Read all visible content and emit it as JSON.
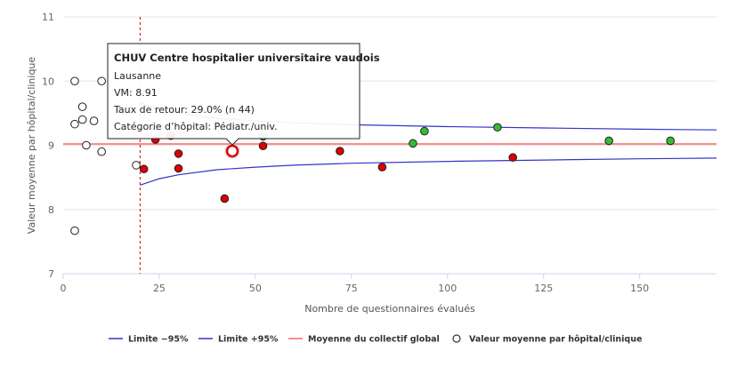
{
  "chart_data": {
    "type": "scatter",
    "xlabel": "Nombre de questionnaires évalués",
    "ylabel": "Valeur moyenne par hôpital/clinique",
    "xlim": [
      0,
      170
    ],
    "ylim": [
      7,
      11
    ],
    "x_ticks": [
      0,
      25,
      50,
      75,
      100,
      125,
      150
    ],
    "y_ticks": [
      7,
      8,
      9,
      10,
      11
    ],
    "grid": "horizontal",
    "legend_position": "bottom",
    "reference_line_x": 20,
    "mean_value": 9.02,
    "legend": [
      {
        "name": "Limite −95%",
        "color": "#3333cc",
        "kind": "line"
      },
      {
        "name": "Limite +95%",
        "color": "#3333cc",
        "kind": "line"
      },
      {
        "name": "Moyenne du collectif global",
        "color": "#ff6666",
        "kind": "line"
      },
      {
        "name": "Valeur moyenne par hôpital/clinique",
        "color": "#333333",
        "kind": "marker"
      }
    ],
    "series": [
      {
        "name": "Limite −95%",
        "color": "#3333cc",
        "x": [
          20,
          25,
          30,
          40,
          50,
          60,
          75,
          100,
          125,
          150,
          170
        ],
        "y": [
          8.38,
          8.48,
          8.54,
          8.62,
          8.66,
          8.69,
          8.72,
          8.75,
          8.77,
          8.79,
          8.8
        ]
      },
      {
        "name": "Limite +95%",
        "color": "#3333cc",
        "x": [
          20,
          25,
          30,
          40,
          50,
          60,
          75,
          100,
          125,
          150,
          170
        ],
        "y": [
          9.66,
          9.56,
          9.5,
          9.42,
          9.38,
          9.35,
          9.32,
          9.29,
          9.27,
          9.25,
          9.24
        ]
      },
      {
        "name": "Valeur moyenne par hôpital/clinique",
        "points": [
          {
            "x": 3,
            "y": 10.0,
            "fill": "#ffffff"
          },
          {
            "x": 10,
            "y": 10.0,
            "fill": "#ffffff"
          },
          {
            "x": 5,
            "y": 9.6,
            "fill": "#ffffff"
          },
          {
            "x": 5,
            "y": 9.4,
            "fill": "#ffffff"
          },
          {
            "x": 8,
            "y": 9.38,
            "fill": "#ffffff"
          },
          {
            "x": 3,
            "y": 9.33,
            "fill": "#ffffff"
          },
          {
            "x": 6,
            "y": 9.0,
            "fill": "#ffffff"
          },
          {
            "x": 10,
            "y": 8.9,
            "fill": "#ffffff"
          },
          {
            "x": 19,
            "y": 8.69,
            "fill": "#ffffff"
          },
          {
            "x": 3,
            "y": 7.67,
            "fill": "#ffffff"
          },
          {
            "x": 21,
            "y": 8.63,
            "fill": "#dd0000"
          },
          {
            "x": 24,
            "y": 9.09,
            "fill": "#dd0000"
          },
          {
            "x": 25,
            "y": 9.28,
            "fill": "#f4b8b8"
          },
          {
            "x": 28,
            "y": 9.15,
            "fill": "#dd0000"
          },
          {
            "x": 30,
            "y": 8.87,
            "fill": "#dd0000"
          },
          {
            "x": 30,
            "y": 8.64,
            "fill": "#dd0000"
          },
          {
            "x": 31,
            "y": 9.2,
            "fill": "#f4b8b8"
          },
          {
            "x": 32,
            "y": 9.21,
            "fill": "#f4b8b8"
          },
          {
            "x": 42,
            "y": 8.17,
            "fill": "#dd0000"
          },
          {
            "x": 44,
            "y": 8.91,
            "fill": "#ffffff",
            "selected": true
          },
          {
            "x": 52,
            "y": 8.99,
            "fill": "#dd0000"
          },
          {
            "x": 52,
            "y": 9.14,
            "fill": "#33bb33"
          },
          {
            "x": 55,
            "y": 9.2,
            "fill": "#f4b8b8"
          },
          {
            "x": 72,
            "y": 8.91,
            "fill": "#dd0000"
          },
          {
            "x": 83,
            "y": 8.66,
            "fill": "#dd0000"
          },
          {
            "x": 91,
            "y": 9.03,
            "fill": "#33bb33"
          },
          {
            "x": 94,
            "y": 9.22,
            "fill": "#33bb33"
          },
          {
            "x": 113,
            "y": 9.28,
            "fill": "#33bb33"
          },
          {
            "x": 117,
            "y": 8.81,
            "fill": "#dd0000"
          },
          {
            "x": 142,
            "y": 9.07,
            "fill": "#33bb33"
          },
          {
            "x": 158,
            "y": 9.07,
            "fill": "#33bb33"
          }
        ]
      }
    ],
    "tooltip": {
      "title": "CHUV Centre hospitalier universitaire vaudois",
      "lines": [
        "Lausanne",
        "VM: 8.91",
        "Taux de retour: 29.0% (n 44)",
        "Catégorie d’hôpital: Pédiatr./univ."
      ]
    }
  }
}
